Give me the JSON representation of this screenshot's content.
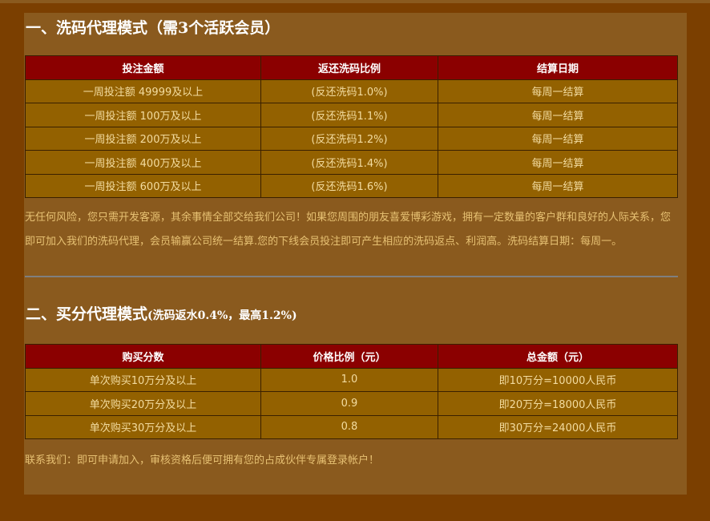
{
  "section1": {
    "title": "一、洗码代理模式（需3个活跃会员）",
    "headers": [
      "投注金额",
      "返还洗码比例",
      "结算日期"
    ],
    "rows": [
      [
        "一周投注额 49999及以上",
        "(反还洗码1.0%)",
        "每周一结算"
      ],
      [
        "一周投注额 100万及以上",
        "(反还洗码1.1%)",
        "每周一结算"
      ],
      [
        "一周投注额 200万及以上",
        "(反还洗码1.2%)",
        "每周一结算"
      ],
      [
        "一周投注额 400万及以上",
        "(反还洗码1.4%)",
        "每周一结算"
      ],
      [
        "一周投注额 600万及以上",
        "(反还洗码1.6%)",
        "每周一结算"
      ]
    ],
    "description": "无任何风险，您只需开发客源，其余事情全部交给我们公司！如果您周围的朋友喜爱博彩游戏，拥有一定数量的客户群和良好的人际关系，您即可加入我们的洗码代理，会员输赢公司统一结算.您的下线会员投注即可产生相应的洗码返点、利润高。洗码结算日期：每周一。"
  },
  "section2": {
    "title": "二、买分代理模式",
    "subtitle": "(洗码返水0.4%，最高1.2%)",
    "headers": [
      "购买分数",
      "价格比例（元）",
      "总金额（元）"
    ],
    "rows": [
      [
        "单次购买10万分及以上",
        "1.0",
        "即10万分=10000人民币"
      ],
      [
        "单次购买20万分及以上",
        "0.9",
        "即20万分=18000人民币"
      ],
      [
        "单次购买30万分及以上",
        "0.8",
        "即30万分=24000人民币"
      ]
    ],
    "contact": "联系我们：即可申请加入，审核资格后便可拥有您的占成伙伴专属登录帐户！"
  },
  "colors": {
    "background": "#7b3f00",
    "panel": "#8a5a1e",
    "header": "#8b0000",
    "row": "#936100",
    "text": "#e7c173"
  }
}
